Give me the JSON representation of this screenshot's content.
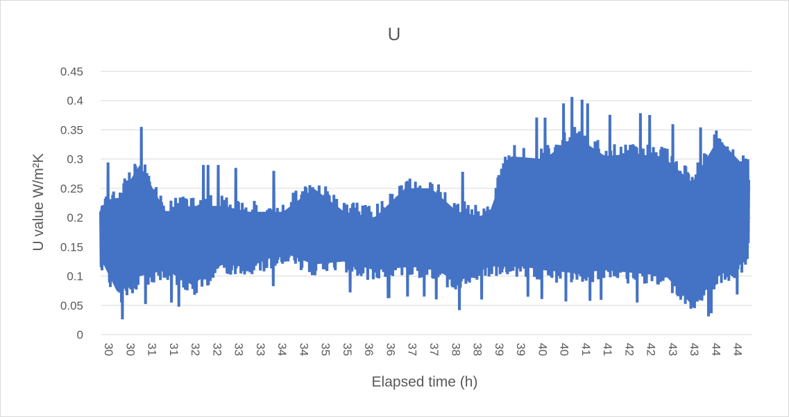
{
  "chart_data": {
    "type": "line",
    "title": "U",
    "xlabel": "Elapsed time (h)",
    "ylabel": "U value W/m²K",
    "ylim": [
      0,
      0.45
    ],
    "yticks": [
      "0",
      "0.05",
      "0.1",
      "0.15",
      "0.2",
      "0.25",
      "0.3",
      "0.35",
      "0.4",
      "0.45"
    ],
    "xticks": [
      "30",
      "30",
      "31",
      "31",
      "32",
      "32",
      "33",
      "33",
      "34",
      "34",
      "35",
      "35",
      "36",
      "36",
      "37",
      "37",
      "38",
      "38",
      "39",
      "39",
      "40",
      "40",
      "41",
      "41",
      "42",
      "42",
      "43",
      "43",
      "44",
      "44"
    ],
    "grid": "horizontal",
    "legend": "none",
    "series_color": "#4472c4",
    "series": [
      {
        "envelope": [
          {
            "x": 30.0,
            "min": 0.08,
            "max": 0.29
          },
          {
            "x": 30.4,
            "min": 0.02,
            "max": 0.3
          },
          {
            "x": 30.9,
            "min": 0.05,
            "max": 0.36
          },
          {
            "x": 31.5,
            "min": 0.06,
            "max": 0.28
          },
          {
            "x": 32.1,
            "min": 0.035,
            "max": 0.29
          },
          {
            "x": 32.8,
            "min": 0.07,
            "max": 0.29
          },
          {
            "x": 33.4,
            "min": 0.065,
            "max": 0.28
          },
          {
            "x": 34.2,
            "min": 0.09,
            "max": 0.28
          },
          {
            "x": 34.9,
            "min": 0.07,
            "max": 0.32
          },
          {
            "x": 35.6,
            "min": 0.075,
            "max": 0.28
          },
          {
            "x": 36.3,
            "min": 0.06,
            "max": 0.27
          },
          {
            "x": 37.0,
            "min": 0.065,
            "max": 0.32
          },
          {
            "x": 37.6,
            "min": 0.065,
            "max": 0.32
          },
          {
            "x": 38.2,
            "min": 0.04,
            "max": 0.28
          },
          {
            "x": 38.9,
            "min": 0.065,
            "max": 0.27
          },
          {
            "x": 39.4,
            "min": 0.07,
            "max": 0.375
          },
          {
            "x": 40.2,
            "min": 0.06,
            "max": 0.37
          },
          {
            "x": 40.9,
            "min": 0.055,
            "max": 0.41
          },
          {
            "x": 41.6,
            "min": 0.06,
            "max": 0.375
          },
          {
            "x": 42.3,
            "min": 0.055,
            "max": 0.38
          },
          {
            "x": 43.0,
            "min": 0.05,
            "max": 0.37
          },
          {
            "x": 43.6,
            "min": 0.0,
            "max": 0.33
          },
          {
            "x": 44.2,
            "min": 0.05,
            "max": 0.405
          },
          {
            "x": 44.9,
            "min": 0.08,
            "max": 0.35
          }
        ]
      }
    ]
  }
}
